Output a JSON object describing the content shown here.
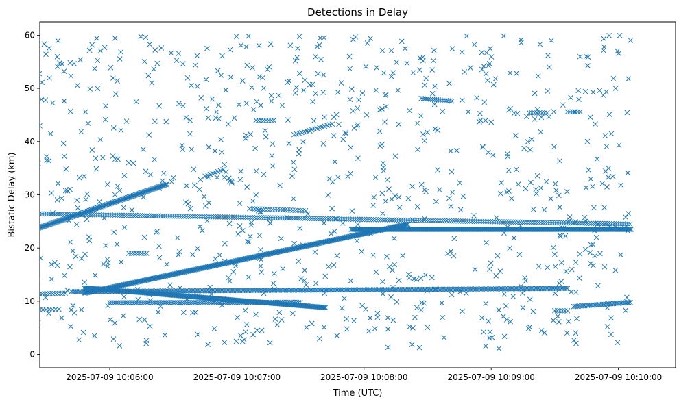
{
  "chart_data": {
    "type": "scatter",
    "title": "Detections in Delay",
    "xlabel": "Time (UTC)",
    "ylabel": "Bistatic Delay (km)",
    "marker": "x",
    "color": "#1f77b4",
    "xlim_minutes": [
      -0.55,
      4.45
    ],
    "ylim": [
      -2.5,
      62.5
    ],
    "x_ticks": [
      {
        "value": 0,
        "label": "2025-07-09 10:06:00"
      },
      {
        "value": 1,
        "label": "2025-07-09 10:07:00"
      },
      {
        "value": 2,
        "label": "2025-07-09 10:08:00"
      },
      {
        "value": 3,
        "label": "2025-07-09 10:09:00"
      },
      {
        "value": 4,
        "label": "2025-07-09 10:10:00"
      }
    ],
    "y_ticks": [
      {
        "value": 0,
        "label": "0"
      },
      {
        "value": 10,
        "label": "10"
      },
      {
        "value": 20,
        "label": "20"
      },
      {
        "value": 30,
        "label": "30"
      },
      {
        "value": 40,
        "label": "40"
      },
      {
        "value": 50,
        "label": "50"
      },
      {
        "value": 60,
        "label": "60"
      }
    ],
    "tracks": [
      {
        "name": "track-22-to-32",
        "x_start": -0.75,
        "x_end": 0.45,
        "y_start": 22.2,
        "y_end": 32.0,
        "step": 0.008
      },
      {
        "name": "track-11-to-24",
        "x_start": -0.2,
        "x_end": 2.35,
        "y_start": 11.5,
        "y_end": 24.5,
        "step": 0.008
      },
      {
        "name": "track-26-to-24",
        "x_start": -0.75,
        "x_end": 4.1,
        "y_start": 26.5,
        "y_end": 24.5,
        "step": 0.018
      },
      {
        "name": "track-23-flat",
        "x_start": 1.9,
        "x_end": 4.1,
        "y_start": 23.5,
        "y_end": 23.5,
        "step": 0.008
      },
      {
        "name": "track-12-flat",
        "x_start": -0.3,
        "x_end": 3.6,
        "y_start": 11.8,
        "y_end": 12.4,
        "step": 0.012
      },
      {
        "name": "track-12-to-9",
        "x_start": -0.2,
        "x_end": 1.7,
        "y_start": 12.5,
        "y_end": 8.8,
        "step": 0.008
      },
      {
        "name": "track-10-flat",
        "x_start": 0.0,
        "x_end": 1.5,
        "y_start": 9.7,
        "y_end": 9.8,
        "step": 0.014
      },
      {
        "name": "track-9-right",
        "x_start": 3.65,
        "x_end": 4.1,
        "y_start": 9.0,
        "y_end": 9.8,
        "step": 0.012
      },
      {
        "name": "track-11-left",
        "x_start": -0.65,
        "x_end": -0.35,
        "y_start": 11.3,
        "y_end": 11.5,
        "step": 0.02
      },
      {
        "name": "track-8-left",
        "x_start": -0.65,
        "x_end": -0.4,
        "y_start": 8.3,
        "y_end": 8.5,
        "step": 0.025
      },
      {
        "name": "track-27-mid",
        "x_start": 1.1,
        "x_end": 1.55,
        "y_start": 27.4,
        "y_end": 27.0,
        "step": 0.02
      },
      {
        "name": "track-48",
        "x_start": 2.45,
        "x_end": 2.7,
        "y_start": 48.1,
        "y_end": 47.6,
        "step": 0.015
      },
      {
        "name": "track-45",
        "x_start": 3.3,
        "x_end": 3.45,
        "y_start": 45.4,
        "y_end": 45.4,
        "step": 0.02
      },
      {
        "name": "track-45b",
        "x_start": 3.6,
        "x_end": 3.7,
        "y_start": 45.6,
        "y_end": 45.6,
        "step": 0.02
      },
      {
        "name": "track-44",
        "x_start": 1.15,
        "x_end": 1.3,
        "y_start": 44.0,
        "y_end": 44.0,
        "step": 0.02
      },
      {
        "name": "track-41-to-43",
        "x_start": 1.45,
        "x_end": 1.75,
        "y_start": 41.3,
        "y_end": 43.3,
        "step": 0.02
      },
      {
        "name": "track-34",
        "x_start": 0.75,
        "x_end": 0.9,
        "y_start": 33.5,
        "y_end": 34.8,
        "step": 0.02
      },
      {
        "name": "track-19",
        "x_start": 0.15,
        "x_end": 0.3,
        "y_start": 19.0,
        "y_end": 19.0,
        "step": 0.02
      },
      {
        "name": "track-8-right",
        "x_start": 3.5,
        "x_end": 3.6,
        "y_start": 8.2,
        "y_end": 8.2,
        "step": 0.02
      }
    ],
    "scatter_count": 900,
    "scatter_seed": 1337
  }
}
